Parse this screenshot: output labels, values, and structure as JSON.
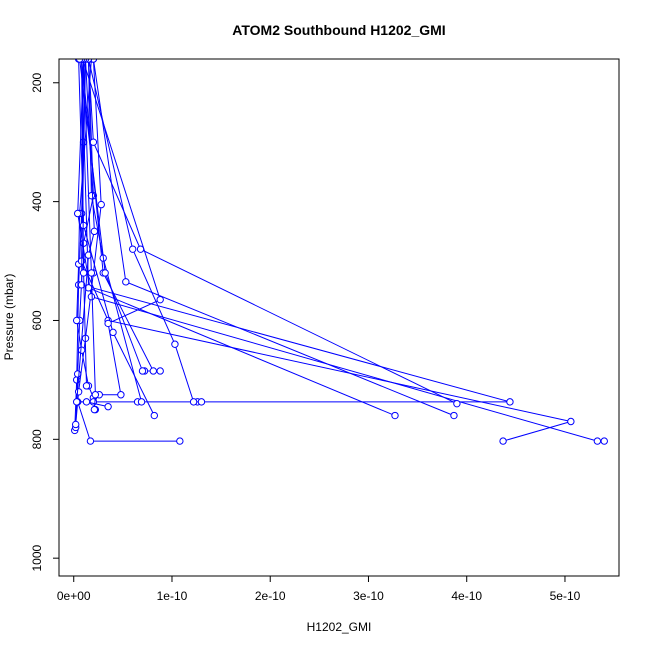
{
  "chart_data": {
    "type": "line",
    "title": "ATOM2 Southbound H1202_GMI",
    "xlabel": "H1202_GMI",
    "ylabel": "Pressure (mbar)",
    "xlim": [
      -1.5e-11,
      5.55e-10
    ],
    "ylim": [
      1030,
      160
    ],
    "y_reversed": true,
    "grid": false,
    "xticks": [
      0,
      1e-10,
      2e-10,
      3e-10,
      4e-10,
      5e-10
    ],
    "xtick_labels": [
      "0e+00",
      "1e-10",
      "2e-10",
      "3e-10",
      "4e-10",
      "5e-10"
    ],
    "yticks": [
      200,
      400,
      600,
      800,
      1000
    ],
    "ytick_labels": [
      "200",
      "400",
      "600",
      "800",
      "1000"
    ],
    "color": "#0000ff",
    "series": [
      {
        "points": [
          [
            1e-12,
            785
          ],
          [
            3e-12,
            700
          ],
          [
            5e-12,
            540
          ],
          [
            8e-12,
            420
          ],
          [
            1e-11,
            300
          ],
          [
            1.2e-11,
            160
          ]
        ]
      },
      {
        "points": [
          [
            2e-12,
            780
          ],
          [
            4e-12,
            690
          ],
          [
            6e-12,
            600
          ],
          [
            1e-11,
            470
          ],
          [
            2e-11,
            390
          ],
          [
            1.5e-11,
            160
          ]
        ]
      },
      {
        "points": [
          [
            2e-12,
            775
          ],
          [
            5e-12,
            720
          ],
          [
            1.2e-11,
            630
          ],
          [
            2e-11,
            520
          ],
          [
            2.8e-11,
            405
          ],
          [
            2e-11,
            160
          ]
        ]
      },
      {
        "points": [
          [
            2e-11,
            730
          ],
          [
            1.5e-11,
            710
          ],
          [
            8e-12,
            650
          ],
          [
            3e-12,
            600
          ],
          [
            5e-12,
            505
          ],
          [
            6e-12,
            420
          ],
          [
            1.8e-11,
            160
          ]
        ]
      },
      {
        "points": [
          [
            5.4e-10,
            803
          ],
          [
            5.33e-10,
            803
          ],
          [
            1.8e-11,
            560
          ],
          [
            4e-12,
            420
          ],
          [
            1e-11,
            160
          ]
        ]
      },
      {
        "points": [
          [
            4.37e-10,
            803
          ],
          [
            5.06e-10,
            770
          ],
          [
            3.5e-11,
            600
          ],
          [
            8e-12,
            500
          ],
          [
            1.2e-11,
            160
          ]
        ]
      },
      {
        "points": [
          [
            1.08e-10,
            803
          ],
          [
            1.7e-11,
            803
          ],
          [
            4e-12,
            737
          ],
          [
            1.26e-10,
            737
          ],
          [
            4.44e-10,
            737
          ],
          [
            8e-12,
            540
          ],
          [
            1e-11,
            160
          ]
        ]
      },
      {
        "points": [
          [
            3.9e-10,
            740
          ],
          [
            6.8e-11,
            480
          ],
          [
            2e-11,
            300
          ],
          [
            1.5e-11,
            160
          ]
        ]
      },
      {
        "points": [
          [
            3.27e-10,
            760
          ],
          [
            1.5e-11,
            545
          ],
          [
            8e-12,
            160
          ]
        ]
      },
      {
        "points": [
          [
            3.87e-10,
            760
          ],
          [
            5.3e-11,
            535
          ],
          [
            2e-11,
            160
          ]
        ]
      },
      {
        "points": [
          [
            8.2e-11,
            760
          ],
          [
            4e-11,
            620
          ],
          [
            1e-11,
            440
          ],
          [
            5e-12,
            160
          ]
        ]
      },
      {
        "points": [
          [
            1.3e-10,
            737
          ],
          [
            1.22e-10,
            737
          ],
          [
            1.03e-10,
            640
          ],
          [
            6e-11,
            480
          ],
          [
            1.5e-11,
            160
          ]
        ]
      },
      {
        "points": [
          [
            8.8e-11,
            685
          ],
          [
            7.2e-11,
            685
          ],
          [
            8.1e-11,
            685
          ],
          [
            3e-11,
            520
          ],
          [
            8e-12,
            160
          ]
        ]
      },
      {
        "points": [
          [
            6.5e-11,
            737
          ],
          [
            6.9e-11,
            737
          ],
          [
            3e-11,
            495
          ],
          [
            1.8e-11,
            390
          ],
          [
            1.5e-11,
            160
          ]
        ]
      },
      {
        "points": [
          [
            2.2e-11,
            750
          ],
          [
            2e-11,
            737
          ],
          [
            2.6e-11,
            725
          ],
          [
            4.8e-11,
            725
          ],
          [
            3.5e-11,
            605
          ],
          [
            8.8e-11,
            565
          ],
          [
            9e-12,
            160
          ]
        ]
      },
      {
        "points": [
          [
            3.5e-11,
            745
          ],
          [
            1.3e-11,
            737
          ],
          [
            3e-12,
            737
          ],
          [
            1.5e-11,
            490
          ],
          [
            2.1e-11,
            450
          ],
          [
            1.2e-11,
            160
          ]
        ]
      },
      {
        "points": [
          [
            2.1e-11,
            750
          ],
          [
            2.2e-11,
            725
          ],
          [
            1.8e-11,
            520
          ],
          [
            1e-11,
            160
          ]
        ]
      },
      {
        "points": [
          [
            1.3e-11,
            710
          ],
          [
            1e-11,
            520
          ],
          [
            8e-12,
            160
          ]
        ]
      },
      {
        "points": [
          [
            7e-11,
            685
          ],
          [
            3.2e-11,
            520
          ],
          [
            6e-12,
            160
          ]
        ]
      }
    ]
  }
}
